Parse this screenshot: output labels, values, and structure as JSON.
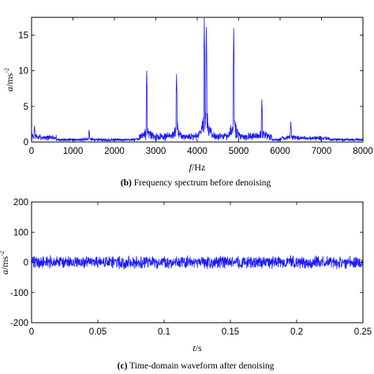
{
  "chart_data": [
    {
      "type": "line",
      "panel": "b",
      "caption_prefix": "(b)",
      "caption_text": "Frequency spectrum before denoising",
      "xlabel_italic": "f",
      "xlabel_unit": "/Hz",
      "ylabel_italic": "a",
      "ylabel_unit": "/ms",
      "ylabel_sup": "-2",
      "xlim": [
        0,
        8000
      ],
      "ylim": [
        0,
        17.5
      ],
      "xticks": [
        "0",
        "1000",
        "2000",
        "3000",
        "4000",
        "5000",
        "6000",
        "7000",
        "8000"
      ],
      "yticks": [
        "0",
        "5",
        "10",
        "15"
      ],
      "line_color": "#1a1aff",
      "series": [
        {
          "values_desc": "spectrum",
          "peaks": [
            {
              "x": 2780,
              "y": 10.0
            },
            {
              "x": 3500,
              "y": 9.5
            },
            {
              "x": 4170,
              "y": 16.5
            },
            {
              "x": 4220,
              "y": 16.1
            },
            {
              "x": 4880,
              "y": 15.5
            },
            {
              "x": 5560,
              "y": 5.5
            },
            {
              "x": 6260,
              "y": 2.5
            },
            {
              "x": 1390,
              "y": 1.7
            },
            {
              "x": 70,
              "y": 2.3
            }
          ]
        }
      ]
    },
    {
      "type": "line",
      "panel": "c",
      "caption_prefix": "(c)",
      "caption_text": "Time-domain waveform after denoising",
      "xlabel_italic": "t",
      "xlabel_unit": "/s",
      "ylabel_italic": "a",
      "ylabel_unit": "/ms",
      "ylabel_sup": "-2",
      "xlim": [
        0,
        0.25
      ],
      "ylim": [
        -200,
        200
      ],
      "xticks": [
        "0",
        "0.05",
        "0.1",
        "0.15",
        "0.2",
        "0.25"
      ],
      "yticks": [
        "-200",
        "-100",
        "0",
        "100",
        "200"
      ],
      "line_color": "#1a1aff",
      "series": [
        {
          "amplitude": 20
        }
      ]
    }
  ]
}
